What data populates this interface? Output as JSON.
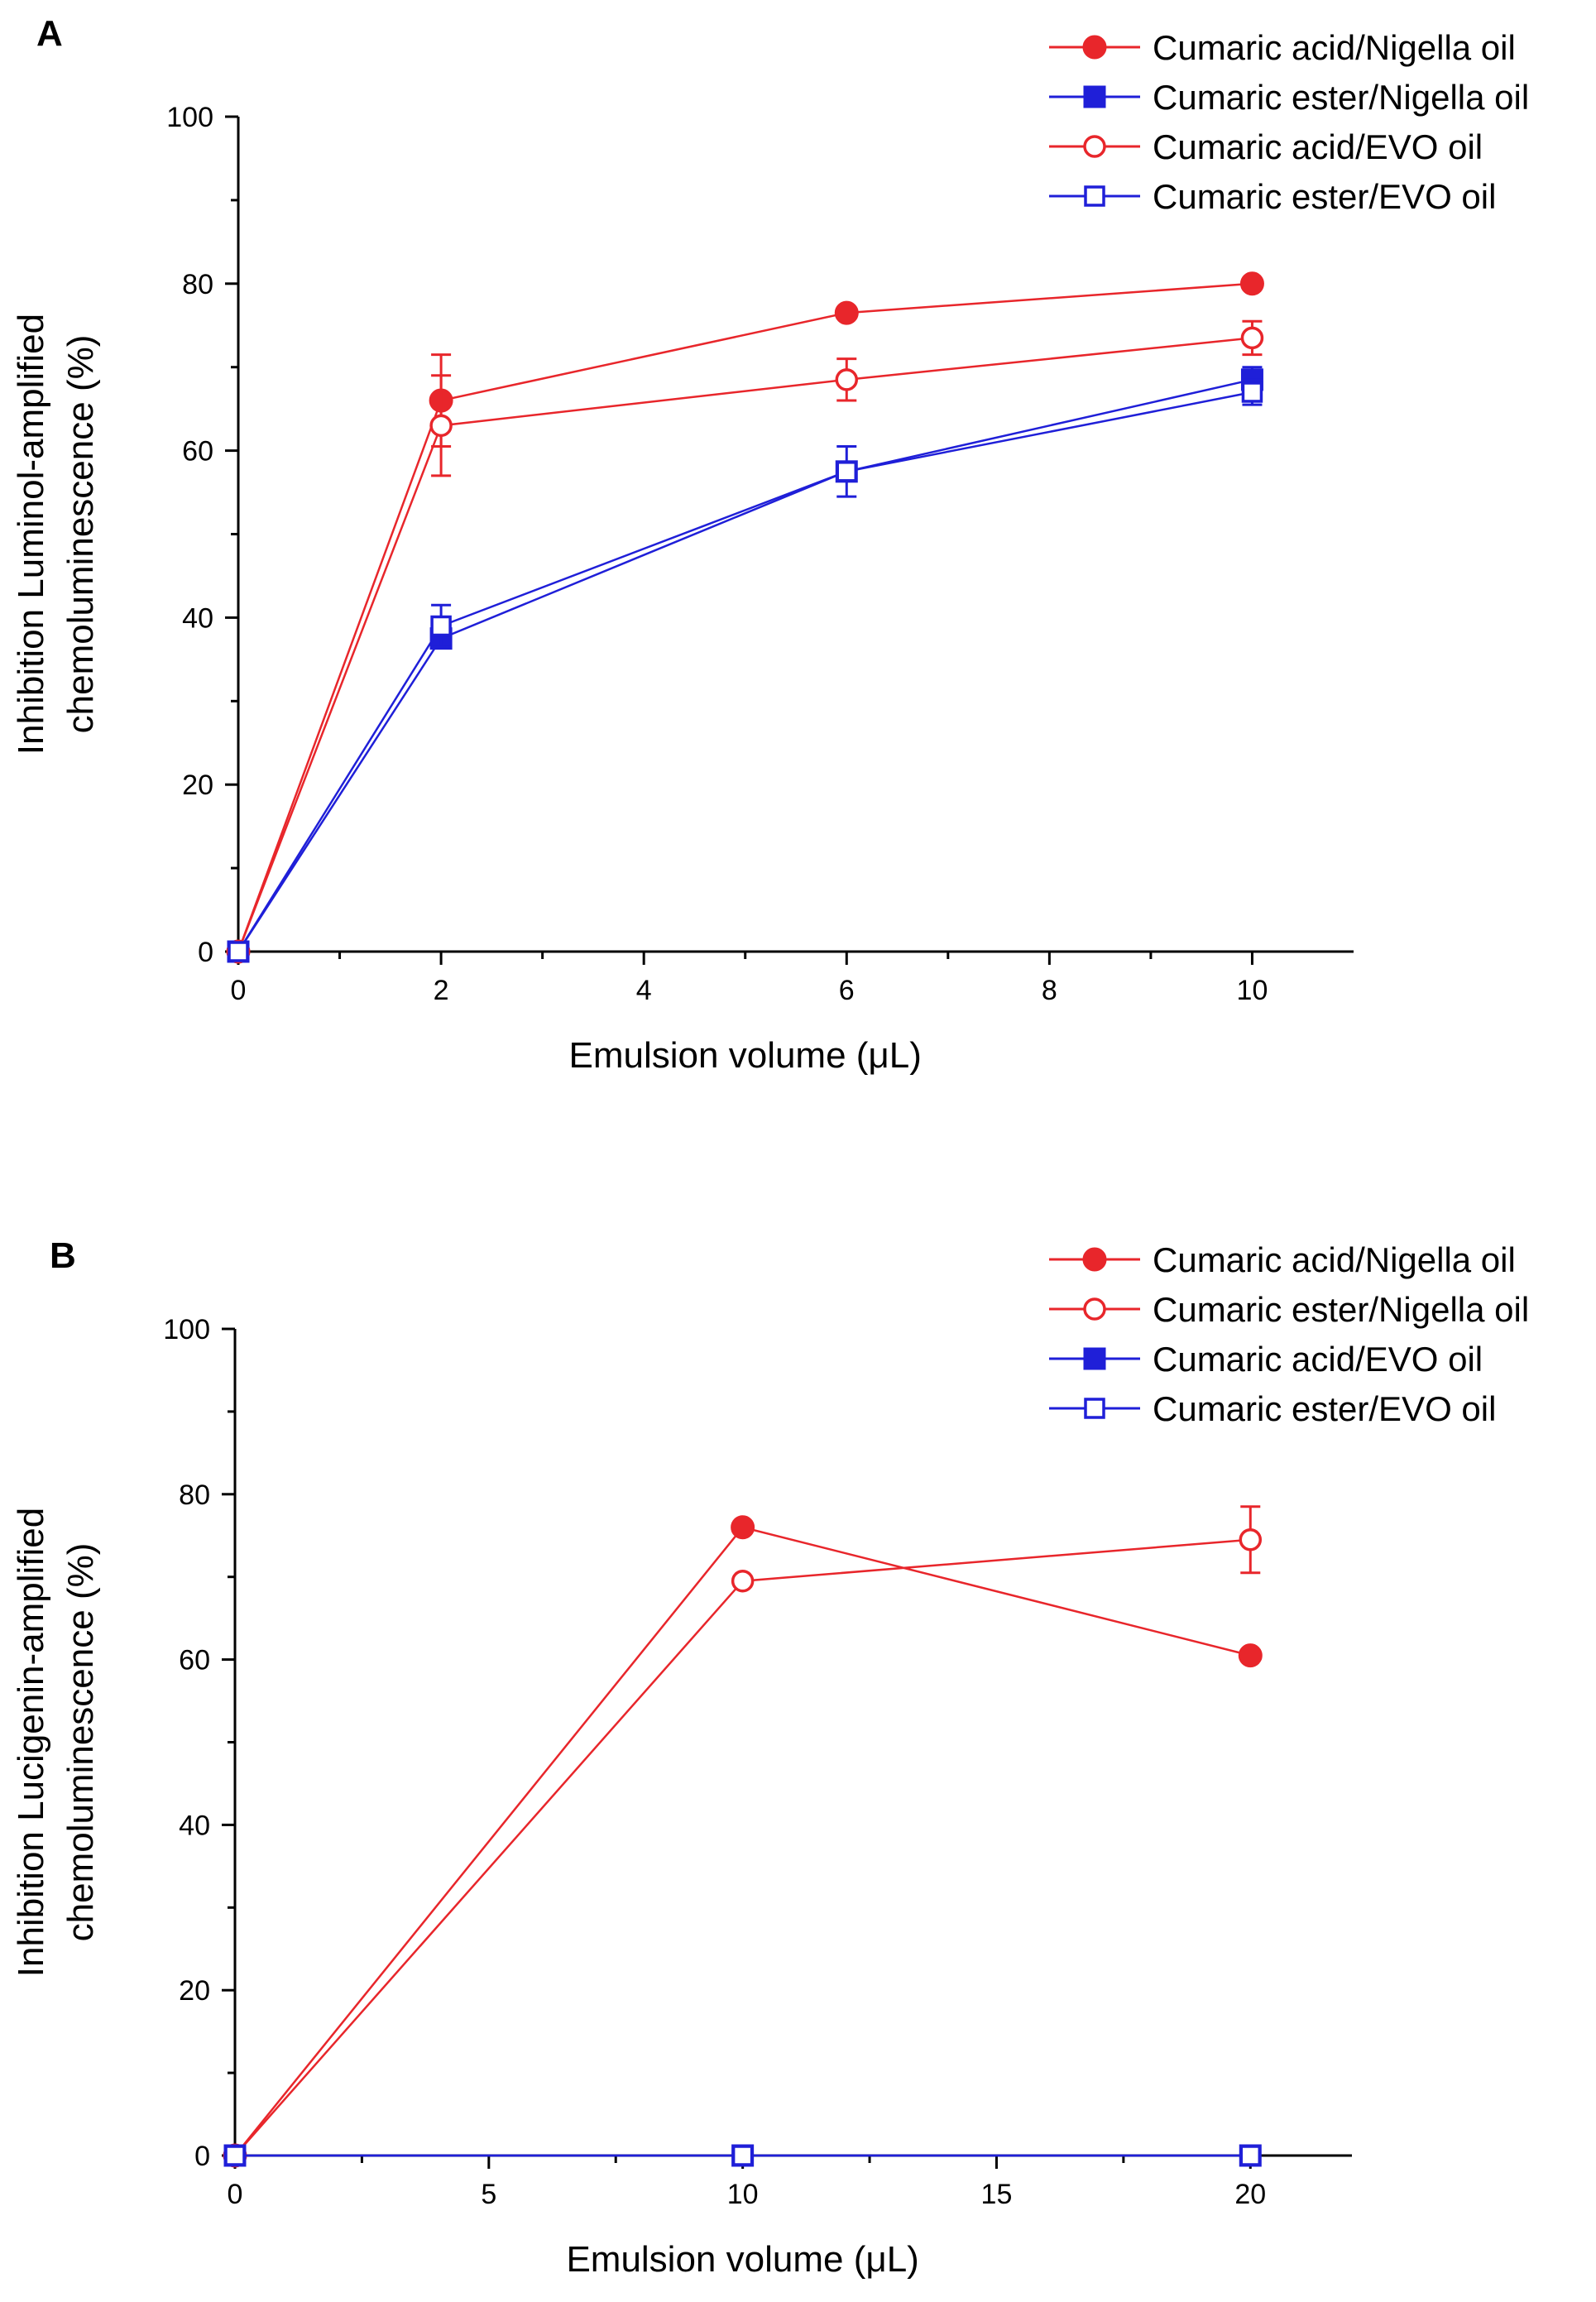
{
  "chart_data": [
    {
      "type": "line",
      "panel_label": "A",
      "xlabel": "Emulsion volume (μL)",
      "ylabel": [
        "Inhibition Luminol-amplified",
        "chemoluminescence (%)"
      ],
      "xlim": [
        0,
        11
      ],
      "ylim": [
        0,
        100
      ],
      "xticks": [
        0,
        2,
        4,
        6,
        8,
        10
      ],
      "yticks": [
        0,
        20,
        40,
        60,
        80,
        100
      ],
      "grid": false,
      "legend_position": "top-right",
      "series": [
        {
          "name": "Cumaric acid/Nigella oil",
          "color": "#e8262b",
          "marker": "circle",
          "filled": true,
          "x": [
            0,
            2,
            6,
            10
          ],
          "y": [
            0,
            66,
            76.5,
            80
          ],
          "err": [
            0,
            5.5,
            0,
            0
          ]
        },
        {
          "name": "Cumaric ester/Nigella oil",
          "color": "#1f1fd8",
          "marker": "square",
          "filled": true,
          "x": [
            0,
            2,
            6,
            10
          ],
          "y": [
            0,
            37.5,
            57.5,
            68.5
          ],
          "err": [
            0,
            0,
            0,
            1.5
          ]
        },
        {
          "name": "Cumaric acid/EVO oil",
          "color": "#e8262b",
          "marker": "circle",
          "filled": false,
          "x": [
            0,
            2,
            6,
            10
          ],
          "y": [
            0,
            63,
            68.5,
            73.5
          ],
          "err": [
            0,
            6,
            2.5,
            2
          ]
        },
        {
          "name": "Cumaric ester/EVO oil",
          "color": "#1f1fd8",
          "marker": "square",
          "filled": false,
          "x": [
            0,
            2,
            6,
            10
          ],
          "y": [
            0,
            39,
            57.5,
            67
          ],
          "err": [
            0,
            2.5,
            3,
            1.5
          ]
        }
      ]
    },
    {
      "type": "line",
      "panel_label": "B",
      "xlabel": "Emulsion volume (μL)",
      "ylabel": [
        "Inhibition Lucigenin-amplified",
        "chemoluminescence (%)"
      ],
      "xlim": [
        0,
        22
      ],
      "ylim": [
        0,
        100
      ],
      "xticks": [
        0,
        5,
        10,
        15,
        20
      ],
      "yticks": [
        0,
        20,
        40,
        60,
        80,
        100
      ],
      "grid": false,
      "legend_position": "top-right",
      "series": [
        {
          "name": "Cumaric acid/Nigella oil",
          "color": "#e8262b",
          "marker": "circle",
          "filled": true,
          "x": [
            0,
            10,
            20
          ],
          "y": [
            0,
            76,
            60.5
          ],
          "err": [
            0,
            0,
            0
          ]
        },
        {
          "name": "Cumaric ester/Nigella oil",
          "color": "#e8262b",
          "marker": "circle",
          "filled": false,
          "x": [
            0,
            10,
            20
          ],
          "y": [
            0,
            69.5,
            74.5
          ],
          "err": [
            0,
            0,
            4
          ]
        },
        {
          "name": "Cumaric acid/EVO oil",
          "color": "#1f1fd8",
          "marker": "square",
          "filled": true,
          "x": [
            0,
            10,
            20
          ],
          "y": [
            0,
            0,
            0
          ],
          "err": [
            0,
            0,
            0
          ]
        },
        {
          "name": "Cumaric ester/EVO oil",
          "color": "#1f1fd8",
          "marker": "square",
          "filled": false,
          "x": [
            0,
            10,
            20
          ],
          "y": [
            0,
            0,
            0
          ],
          "err": [
            0,
            0,
            0
          ]
        }
      ]
    }
  ]
}
